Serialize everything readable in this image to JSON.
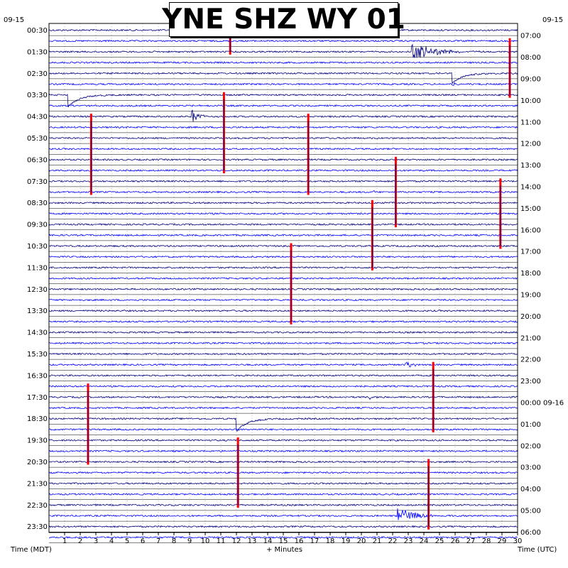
{
  "title": "YNE SHZ WY 01",
  "chart_data": {
    "type": "line",
    "title": "YNE SHZ WY 01",
    "xlabel": "+ Minutes",
    "xlabel_left": "Time (MDT)",
    "xlabel_right": "Time (UTC)",
    "xlim": [
      0,
      30
    ],
    "x_ticks": [
      "1",
      "2",
      "3",
      "4",
      "5",
      "6",
      "7",
      "8",
      "9",
      "10",
      "11",
      "12",
      "13",
      "14",
      "15",
      "16",
      "17",
      "18",
      "19",
      "20",
      "21",
      "22",
      "23",
      "24",
      "25",
      "26",
      "27",
      "28",
      "29",
      "30"
    ],
    "left_date": "09-15",
    "right_date": "09-15",
    "left_labels": [
      "00:30",
      "01:30",
      "02:30",
      "03:30",
      "04:30",
      "05:30",
      "06:30",
      "07:30",
      "08:30",
      "09:30",
      "10:30",
      "11:30",
      "12:30",
      "13:30",
      "14:30",
      "15:30",
      "16:30",
      "17:30",
      "18:30",
      "19:30",
      "20:30",
      "21:30",
      "22:30",
      "23:30"
    ],
    "right_labels": [
      "07:00",
      "08:00",
      "09:00",
      "10:00",
      "11:00",
      "12:00",
      "13:00",
      "14:00",
      "15:00",
      "16:00",
      "17:00",
      "18:00",
      "19:00",
      "20:00",
      "21:00",
      "22:00",
      "23:00",
      "00:00 09-16",
      "01:00",
      "02:00",
      "03:00",
      "04:00",
      "05:00",
      "06:00"
    ],
    "trace_colors": [
      "#000080",
      "#0000ff"
    ],
    "clip_marker_color": "#ff0000",
    "grid": true,
    "events": [
      {
        "trace": 2,
        "minute": 23.2,
        "amplitude": 14,
        "duration": 5,
        "type": "quake"
      },
      {
        "trace": 8,
        "minute": 9.1,
        "amplitude": 11,
        "duration": 2,
        "type": "quake"
      },
      {
        "trace": 31,
        "minute": 22.8,
        "amplitude": 6,
        "duration": 1.5,
        "type": "quake"
      },
      {
        "trace": 45,
        "minute": 22.3,
        "amplitude": 13,
        "duration": 4,
        "type": "quake"
      },
      {
        "trace": 34,
        "minute": 20.5,
        "amplitude": 4,
        "duration": 1,
        "type": "quake"
      },
      {
        "trace": 15,
        "minute": 20.6,
        "amplitude": 3,
        "duration": 1,
        "type": "quake"
      },
      {
        "trace": 5,
        "minute": 25.8,
        "amplitude": 2,
        "duration": 1,
        "type": "quake"
      },
      {
        "trace": 7,
        "minute": 9.5,
        "amplitude": 2,
        "duration": 1,
        "type": "quake"
      }
    ],
    "recoveries": [
      {
        "trace": 6,
        "minute": 1.2,
        "depth": 18
      },
      {
        "trace": 4,
        "minute": 25.8,
        "depth": 14
      },
      {
        "trace": 36,
        "minute": 12.0,
        "depth": 18
      }
    ],
    "clip_spikes": [
      {
        "start_trace": 0,
        "end_trace": 2,
        "minute": 11.6
      },
      {
        "start_trace": 1,
        "end_trace": 6,
        "minute": 29.5
      },
      {
        "start_trace": 6,
        "end_trace": 13,
        "minute": 11.2
      },
      {
        "start_trace": 8,
        "end_trace": 15,
        "minute": 2.7
      },
      {
        "start_trace": 8,
        "end_trace": 15,
        "minute": 16.6
      },
      {
        "start_trace": 12,
        "end_trace": 18,
        "minute": 22.2
      },
      {
        "start_trace": 14,
        "end_trace": 20,
        "minute": 28.9
      },
      {
        "start_trace": 16,
        "end_trace": 22,
        "minute": 20.7
      },
      {
        "start_trace": 20,
        "end_trace": 27,
        "minute": 15.5
      },
      {
        "start_trace": 31,
        "end_trace": 37,
        "minute": 24.6
      },
      {
        "start_trace": 33,
        "end_trace": 40,
        "minute": 2.5
      },
      {
        "start_trace": 38,
        "end_trace": 44,
        "minute": 12.1
      },
      {
        "start_trace": 40,
        "end_trace": 46,
        "minute": 24.3
      }
    ]
  }
}
